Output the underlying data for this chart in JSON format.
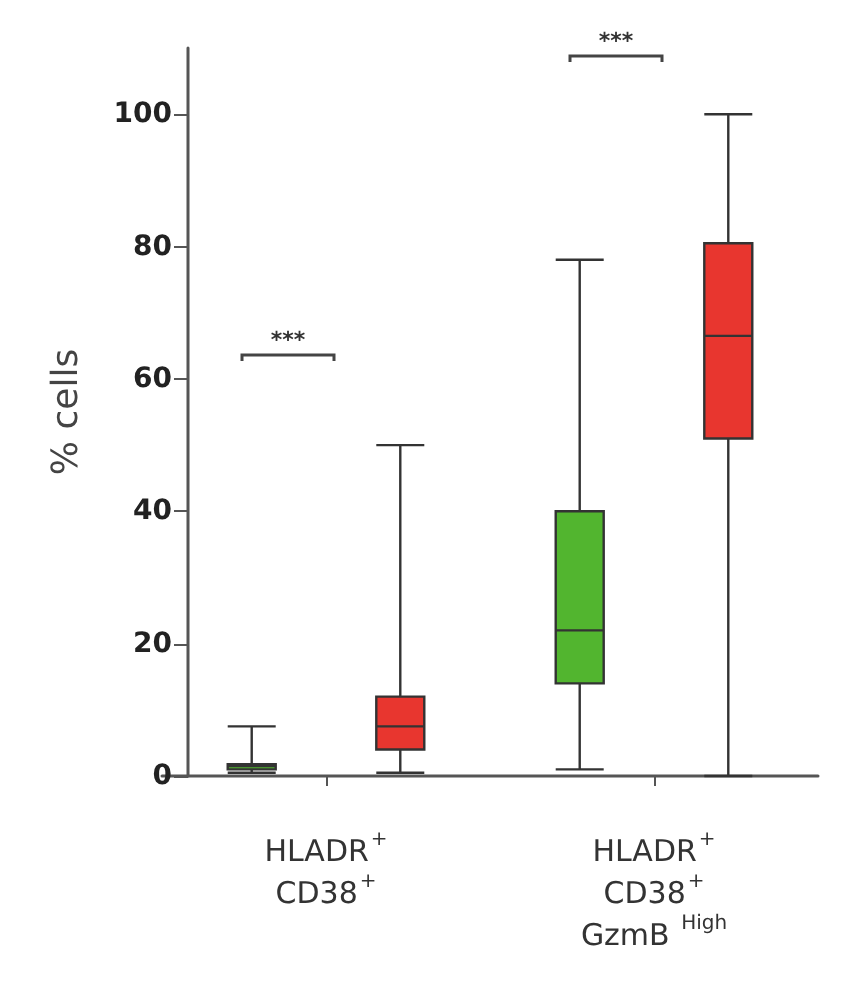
{
  "chart_data": {
    "type": "box",
    "ylabel": "% cells",
    "categories": [
      "HLADR$^{+}$\nCD38$^{+}$",
      "HLADR$^{+}$\nCD38$^{+}$\nGzmB $^{High}$"
    ],
    "ylim": [
      0,
      110
    ],
    "yticks": [
      0,
      20,
      40,
      60,
      80,
      100
    ],
    "grid": false,
    "series": [
      {
        "color": "#52b52f",
        "boxes": [
          {
            "low": 0.5,
            "q1": 1,
            "median": 1.5,
            "q3": 1.8,
            "high": 7.5
          },
          {
            "low": 1,
            "q1": 14,
            "median": 22,
            "q3": 40,
            "high": 78
          }
        ]
      },
      {
        "color": "#e8362f",
        "boxes": [
          {
            "low": 0.5,
            "q1": 4,
            "median": 7.5,
            "q3": 12,
            "high": 50
          },
          {
            "low": 0,
            "q1": 51,
            "median": 66.5,
            "q3": 80.5,
            "high": 100
          }
        ]
      }
    ],
    "annotations": [
      "***",
      "***"
    ]
  }
}
